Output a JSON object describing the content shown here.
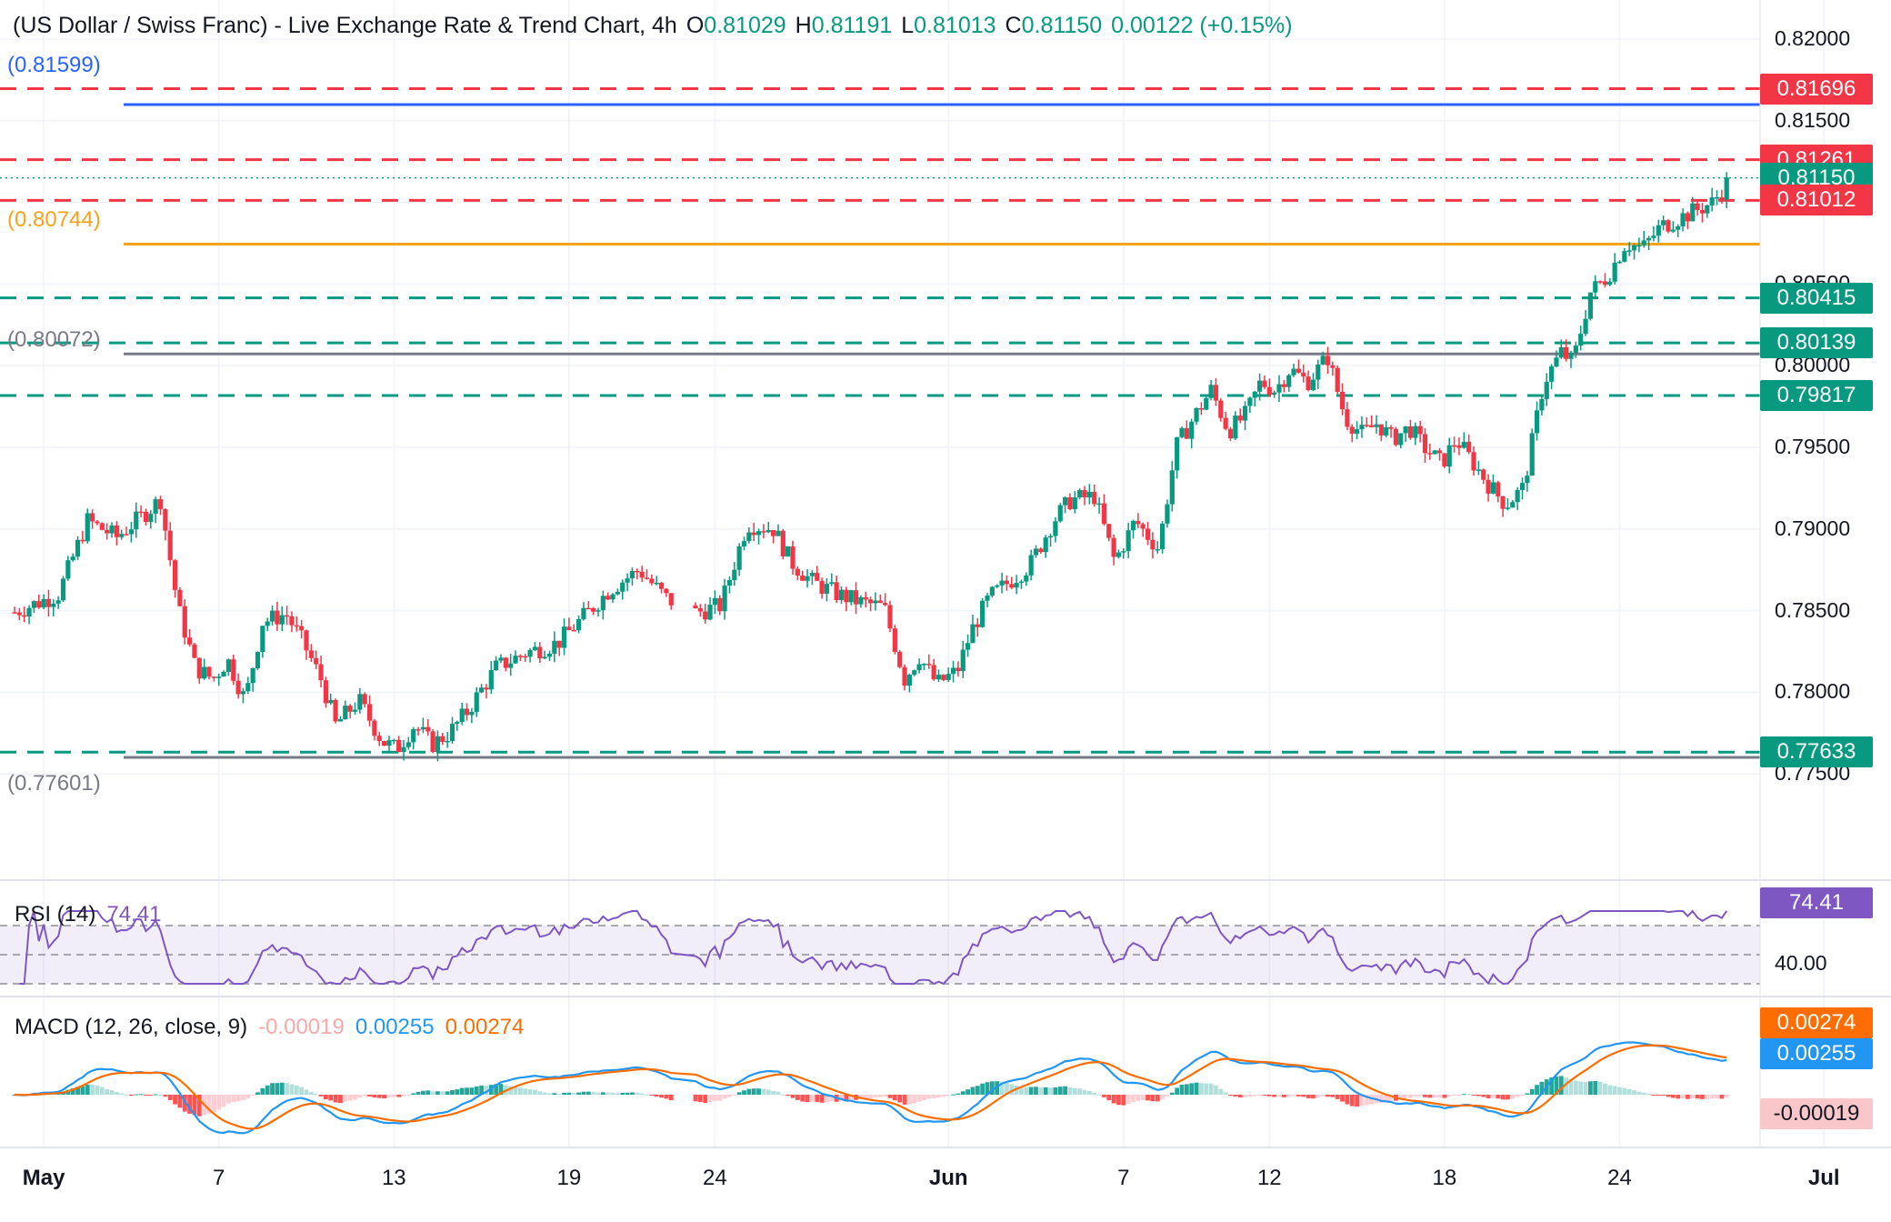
{
  "header": {
    "title": "(US Dollar / Swiss Franc) - Live Exchange Rate & Trend Chart, 4h",
    "o_label": "O",
    "o_value": "0.81029",
    "h_label": "H",
    "h_value": "0.81191",
    "l_label": "L",
    "l_value": "0.81013",
    "c_label": "C",
    "c_value": "0.81150",
    "change": "0.00122 (+0.15%)"
  },
  "colors": {
    "up": "#089981",
    "down": "#f23645",
    "red_line": "#f23645",
    "green_line": "#089981",
    "blue_line": "#2962ff",
    "orange_line": "#f7a21b",
    "gray_line": "#787b86",
    "rsi": "#7e57c2",
    "macd": "#2196f3",
    "signal": "#ff6d00"
  },
  "level_tags": {
    "blue": "(0.81599)",
    "orange": "(0.80744)",
    "gray_mid": "(0.80072)",
    "gray_low": "(0.77601)"
  },
  "price_badges": [
    {
      "label": "0.81696",
      "value": 0.81696,
      "kind": "red"
    },
    {
      "label": "0.81261",
      "value": 0.81261,
      "kind": "red"
    },
    {
      "label": "0.81150",
      "value": 0.8115,
      "kind": "last"
    },
    {
      "label": "0.81012",
      "value": 0.81012,
      "kind": "red"
    },
    {
      "label": "0.80415",
      "value": 0.80415,
      "kind": "green"
    },
    {
      "label": "0.80139",
      "value": 0.80139,
      "kind": "green"
    },
    {
      "label": "0.79817",
      "value": 0.79817,
      "kind": "green"
    },
    {
      "label": "0.77633",
      "value": 0.77633,
      "kind": "green"
    }
  ],
  "y_axis_labels": [
    "0.82000",
    "0.81500",
    "0.80500",
    "0.80000",
    "0.79500",
    "0.79000",
    "0.78500",
    "0.78000",
    "0.77500"
  ],
  "x_axis_labels": [
    {
      "text": "May",
      "bold": true,
      "day": 1
    },
    {
      "text": "7",
      "bold": false,
      "day": 7
    },
    {
      "text": "13",
      "bold": false,
      "day": 13
    },
    {
      "text": "19",
      "bold": false,
      "day": 19
    },
    {
      "text": "24",
      "bold": false,
      "day": 24
    },
    {
      "text": "Jun",
      "bold": true,
      "day": 32
    },
    {
      "text": "7",
      "bold": false,
      "day": 38
    },
    {
      "text": "12",
      "bold": false,
      "day": 43
    },
    {
      "text": "18",
      "bold": false,
      "day": 49
    },
    {
      "text": "24",
      "bold": false,
      "day": 55
    },
    {
      "text": "Jul",
      "bold": true,
      "day": 62
    }
  ],
  "rsi": {
    "title": "RSI (14)",
    "value": "74.41",
    "badge": "74.41",
    "axis_label": "40.00"
  },
  "macd": {
    "title": "MACD (12, 26, close, 9)",
    "hist_value": "-0.00019",
    "macd_value": "0.00255",
    "signal_value": "0.00274",
    "badge_signal": "0.00274",
    "badge_macd": "0.00255",
    "badge_hist": "-0.00019"
  },
  "chart_data": {
    "type": "candlestick",
    "title": "(US Dollar / Swiss Franc) - Live Exchange Rate & Trend Chart, 4h",
    "x_unit": "days since Apr 26",
    "ylim": [
      0.772,
      0.8215
    ],
    "horizontal_levels": {
      "red_dashed": [
        0.81696,
        0.81261,
        0.81012
      ],
      "green_dashed": [
        0.80415,
        0.80139,
        0.79817,
        0.77633
      ],
      "blue_solid": 0.81599,
      "orange_solid": 0.80744,
      "gray_solid": [
        0.80072,
        0.77601
      ],
      "last_price_dotted": 0.8115
    },
    "price_path": [
      [
        0,
        0.7849
      ],
      [
        1.5,
        0.786
      ],
      [
        2.5,
        0.7905
      ],
      [
        3.5,
        0.7895
      ],
      [
        4.5,
        0.791
      ],
      [
        5,
        0.7918
      ],
      [
        5.6,
        0.7852
      ],
      [
        6.2,
        0.7815
      ],
      [
        6.8,
        0.7808
      ],
      [
        7.3,
        0.782
      ],
      [
        7.9,
        0.7795
      ],
      [
        8.5,
        0.7843
      ],
      [
        9.3,
        0.7848
      ],
      [
        9.9,
        0.783
      ],
      [
        10.5,
        0.7808
      ],
      [
        11,
        0.778
      ],
      [
        11.8,
        0.7795
      ],
      [
        12.6,
        0.777
      ],
      [
        13.1,
        0.7765
      ],
      [
        13.7,
        0.778
      ],
      [
        14.3,
        0.7768
      ],
      [
        14.9,
        0.7775
      ],
      [
        15.5,
        0.7788
      ],
      [
        16.5,
        0.7815
      ],
      [
        17.5,
        0.7824
      ],
      [
        18.6,
        0.783
      ],
      [
        19.6,
        0.7848
      ],
      [
        20.4,
        0.7863
      ],
      [
        21.4,
        0.7875
      ],
      [
        22.3,
        0.7858
      ],
      [
        23.2,
        0.7848
      ],
      [
        24.2,
        0.7853
      ],
      [
        25.1,
        0.7903
      ],
      [
        26,
        0.79
      ],
      [
        26.6,
        0.788
      ],
      [
        27.3,
        0.7868
      ],
      [
        28.2,
        0.786
      ],
      [
        29,
        0.7855
      ],
      [
        29.8,
        0.7852
      ],
      [
        30.5,
        0.7808
      ],
      [
        31,
        0.7822
      ],
      [
        31.6,
        0.7805
      ],
      [
        32.3,
        0.7813
      ],
      [
        32.8,
        0.7838
      ],
      [
        33.4,
        0.7858
      ],
      [
        34.1,
        0.7868
      ],
      [
        34.8,
        0.7878
      ],
      [
        35.6,
        0.7905
      ],
      [
        36.2,
        0.7918
      ],
      [
        37,
        0.792
      ],
      [
        37.7,
        0.788
      ],
      [
        38.4,
        0.7905
      ],
      [
        39.2,
        0.7888
      ],
      [
        39.8,
        0.795
      ],
      [
        40.4,
        0.7968
      ],
      [
        41,
        0.7985
      ],
      [
        41.6,
        0.796
      ],
      [
        42.2,
        0.797
      ],
      [
        42.7,
        0.799
      ],
      [
        43.2,
        0.7985
      ],
      [
        43.7,
        0.7998
      ],
      [
        44.3,
        0.799
      ],
      [
        45,
        0.8005
      ],
      [
        45.6,
        0.7968
      ],
      [
        46.2,
        0.7958
      ],
      [
        46.7,
        0.7965
      ],
      [
        47.2,
        0.7955
      ],
      [
        47.8,
        0.7962
      ],
      [
        48.3,
        0.795
      ],
      [
        48.9,
        0.794
      ],
      [
        49.4,
        0.7955
      ],
      [
        50,
        0.794
      ],
      [
        50.6,
        0.7925
      ],
      [
        51.1,
        0.7915
      ],
      [
        51.7,
        0.7925
      ],
      [
        52.4,
        0.799
      ],
      [
        53,
        0.8008
      ],
      [
        53.4,
        0.8002
      ],
      [
        54,
        0.8045
      ],
      [
        54.6,
        0.8055
      ],
      [
        55.2,
        0.8075
      ],
      [
        55.8,
        0.8072
      ],
      [
        56.4,
        0.8085
      ],
      [
        57,
        0.809
      ],
      [
        57.6,
        0.8095
      ],
      [
        58.2,
        0.81
      ],
      [
        58.8,
        0.8115
      ]
    ],
    "rsi_range": [
      30,
      80
    ],
    "rsi_bands": [
      70,
      50,
      30
    ],
    "macd_range": [
      -0.0026,
      0.0042
    ]
  }
}
